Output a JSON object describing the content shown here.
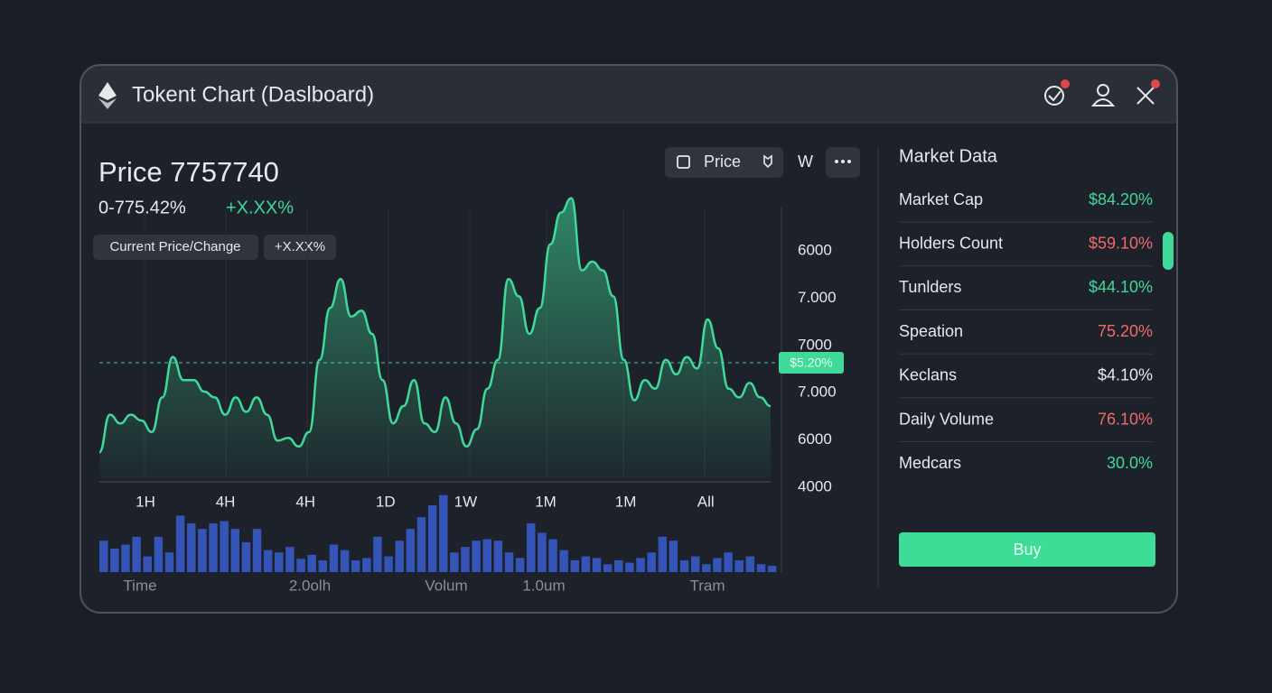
{
  "header": {
    "title": "Tokent Chart (Daslboard)"
  },
  "price": {
    "title": "Price 7757740",
    "change": "0-775.42%",
    "delta": "+X.XX%",
    "badges": [
      "Current Price/Change",
      "+X.XX%"
    ]
  },
  "toolbar": {
    "price_button": "Price",
    "interval": "W"
  },
  "chart_data": {
    "type": "area",
    "color": "#3fd99a",
    "values": [
      9,
      22,
      19,
      22,
      20,
      16,
      28,
      42,
      34,
      34,
      30,
      28,
      22,
      28,
      23,
      28,
      22,
      13,
      14,
      11,
      16,
      41,
      59,
      69,
      56,
      58,
      50,
      34,
      19,
      25,
      34,
      19,
      16,
      28,
      19,
      11,
      17,
      31,
      41,
      69,
      63,
      50,
      59,
      81,
      92,
      97,
      72,
      75,
      72,
      63,
      41,
      27,
      34,
      31,
      41,
      36,
      42,
      38,
      55,
      45,
      31,
      28,
      33,
      28,
      25
    ],
    "ylim": [
      0,
      100
    ],
    "y_labels": [
      "6000",
      "7.000",
      "7000",
      "7.000",
      "6000",
      "4000"
    ],
    "reference": {
      "value": 40,
      "label": "$5.20%"
    },
    "x_labels": [
      "1H",
      "4H",
      "4H",
      "1D",
      "1W",
      "1M",
      "1M",
      "All"
    ],
    "volume": {
      "color": "#3554b8",
      "ylim": [
        0,
        100
      ],
      "values": [
        40,
        30,
        35,
        45,
        20,
        45,
        25,
        72,
        62,
        55,
        62,
        65,
        55,
        38,
        55,
        28,
        25,
        32,
        17,
        22,
        15,
        35,
        28,
        15,
        18,
        45,
        20,
        40,
        55,
        70,
        85,
        98,
        25,
        32,
        40,
        42,
        40,
        25,
        18,
        62,
        50,
        42,
        28,
        15,
        20,
        18,
        10,
        15,
        12,
        18,
        25,
        45,
        40,
        15,
        20,
        10,
        18,
        25,
        15,
        20,
        10,
        8
      ]
    },
    "bottom_labels": [
      "Time",
      "2.0olh",
      "Volum",
      "1.0um",
      "Tram"
    ]
  },
  "market_data": {
    "title": "Market Data",
    "buy": "Buy",
    "rows": [
      {
        "label": "Market Cap",
        "value": "$84.20%",
        "color": "#3fd99a"
      },
      {
        "label": "Holders Count",
        "value": "$59.10%",
        "color": "#f06a6a"
      },
      {
        "label": "Tunlders",
        "value": "$44.10%",
        "color": "#3fd99a"
      },
      {
        "label": "Speation",
        "value": "75.20%",
        "color": "#f06a6a"
      },
      {
        "label": "Keclans",
        "value": "$4.10%",
        "color": "#e6e8ec"
      },
      {
        "label": "Daily Volume",
        "value": "76.10%",
        "color": "#f06a6a"
      },
      {
        "label": "Medcars",
        "value": "30.0%",
        "color": "#3fd99a"
      }
    ]
  }
}
